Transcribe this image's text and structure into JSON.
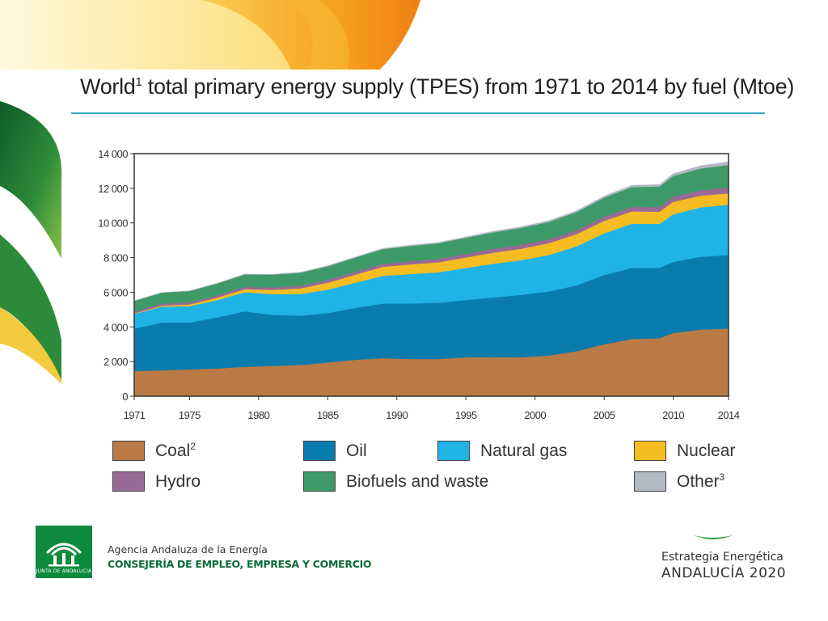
{
  "slide": {
    "title_main": "World",
    "title_sup": "1",
    "title_rest": " total primary energy supply (TPES) from 1971 to 2014 by fuel (Mtoe)"
  },
  "colors": {
    "coal": "#b97a45",
    "oil": "#0a7bad",
    "natural_gas": "#1fb3e6",
    "nuclear": "#f6bd22",
    "hydro": "#9a6a96",
    "biofuels": "#3f9a6a",
    "other": "#b3b9c4",
    "title_rule": "#3aa7c8",
    "brand_green": "#0e8a3e"
  },
  "legend": {
    "coal": {
      "label": "Coal",
      "sup": "2"
    },
    "oil": {
      "label": "Oil",
      "sup": ""
    },
    "natural_gas": {
      "label": "Natural gas",
      "sup": ""
    },
    "nuclear": {
      "label": "Nuclear",
      "sup": ""
    },
    "hydro": {
      "label": "Hydro",
      "sup": ""
    },
    "biofuels": {
      "label": "Biofuels and waste",
      "sup": ""
    },
    "other": {
      "label": "Other",
      "sup": "3"
    }
  },
  "chart_data": {
    "type": "area",
    "stacked": true,
    "title": "World¹ total primary energy supply (TPES) from 1971 to 2014 by fuel (Mtoe)",
    "xlabel": "",
    "ylabel": "",
    "x": [
      1971,
      1973,
      1975,
      1977,
      1979,
      1981,
      1983,
      1985,
      1987,
      1989,
      1991,
      1993,
      1995,
      1997,
      1999,
      2001,
      2003,
      2005,
      2007,
      2009,
      2010,
      2012,
      2014
    ],
    "xlim": [
      1971,
      2014
    ],
    "ylim": [
      0,
      14000
    ],
    "x_ticks": [
      "1971",
      "1975",
      "1980",
      "1985",
      "1990",
      "1995",
      "2000",
      "2005",
      "2010",
      "2014"
    ],
    "x_tick_values": [
      1971,
      1975,
      1980,
      1985,
      1990,
      1995,
      2000,
      2005,
      2010,
      2014
    ],
    "y_ticks": [
      "0",
      "2 000",
      "4 000",
      "6 000",
      "8 000",
      "10 000",
      "12 000",
      "14 000"
    ],
    "y_tick_values": [
      0,
      2000,
      4000,
      6000,
      8000,
      10000,
      12000,
      14000
    ],
    "grid": false,
    "legend_position": "bottom",
    "series": [
      {
        "name": "Coal²",
        "key": "coal",
        "color": "#b97a45",
        "values": [
          1450,
          1500,
          1550,
          1600,
          1700,
          1750,
          1800,
          1950,
          2100,
          2200,
          2150,
          2150,
          2250,
          2250,
          2250,
          2350,
          2600,
          3000,
          3300,
          3350,
          3650,
          3850,
          3900
        ]
      },
      {
        "name": "Oil",
        "key": "oil",
        "color": "#0a7bad",
        "values": [
          2450,
          2750,
          2700,
          2950,
          3200,
          2950,
          2850,
          2850,
          3000,
          3150,
          3200,
          3250,
          3300,
          3450,
          3600,
          3700,
          3800,
          4000,
          4100,
          4050,
          4100,
          4200,
          4250
        ]
      },
      {
        "name": "Natural gas",
        "key": "natural_gas",
        "color": "#1fb3e6",
        "values": [
          850,
          920,
          950,
          1000,
          1100,
          1200,
          1250,
          1350,
          1450,
          1600,
          1700,
          1750,
          1850,
          1950,
          2000,
          2100,
          2250,
          2400,
          2550,
          2550,
          2750,
          2850,
          2900
        ]
      },
      {
        "name": "Nuclear",
        "key": "nuclear",
        "color": "#f6bd22",
        "values": [
          30,
          55,
          95,
          140,
          180,
          240,
          320,
          400,
          470,
          520,
          560,
          580,
          610,
          640,
          660,
          690,
          700,
          720,
          720,
          700,
          720,
          680,
          660
        ]
      },
      {
        "name": "Hydro",
        "key": "hydro",
        "color": "#9a6a96",
        "values": [
          105,
          112,
          118,
          125,
          135,
          140,
          148,
          160,
          165,
          175,
          185,
          195,
          205,
          215,
          225,
          220,
          230,
          245,
          255,
          270,
          285,
          310,
          335
        ]
      },
      {
        "name": "Biofuels and waste",
        "key": "biofuels",
        "color": "#3f9a6a",
        "values": [
          615,
          640,
          660,
          690,
          720,
          740,
          760,
          790,
          820,
          850,
          880,
          900,
          930,
          960,
          980,
          1000,
          1050,
          1100,
          1150,
          1180,
          1210,
          1260,
          1300
        ]
      },
      {
        "name": "Other³",
        "key": "other",
        "color": "#b3b9c4",
        "values": [
          10,
          12,
          14,
          16,
          18,
          20,
          25,
          30,
          35,
          40,
          45,
          50,
          55,
          60,
          65,
          70,
          75,
          85,
          100,
          115,
          130,
          155,
          190
        ]
      }
    ]
  },
  "footer": {
    "logo_text": "JUNTA DE ANDALUCIA",
    "agency": "Agencia Andaluza de la Energía",
    "consejeria": "CONSEJERÍA DE EMPLEO, EMPRESA Y COMERCIO",
    "strategy_line1": "Estrategia Energética",
    "strategy_line2": "ANDALUCÍA 2020"
  }
}
